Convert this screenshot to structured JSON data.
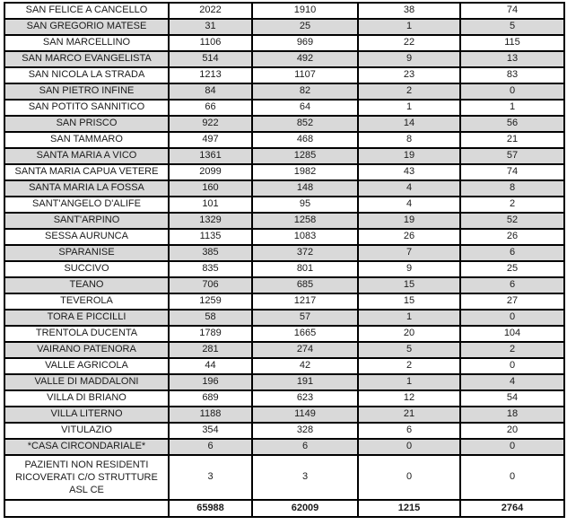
{
  "document": {
    "description_note": "Table of municipalities with four numeric value columns and a bold totals row",
    "colors": {
      "shaded_row_bg": "#d9d9d9",
      "border": "#000000",
      "text": "#1b1b1b",
      "page_bg": "#ffffff"
    }
  },
  "table": {
    "rows": [
      {
        "name": "SAN FELICE A CANCELLO",
        "values": [
          "2022",
          "1910",
          "38",
          "74"
        ],
        "shaded": false
      },
      {
        "name": "SAN GREGORIO MATESE",
        "values": [
          "31",
          "25",
          "1",
          "5"
        ],
        "shaded": true
      },
      {
        "name": "SAN MARCELLINO",
        "values": [
          "1106",
          "969",
          "22",
          "115"
        ],
        "shaded": false
      },
      {
        "name": "SAN MARCO EVANGELISTA",
        "values": [
          "514",
          "492",
          "9",
          "13"
        ],
        "shaded": true
      },
      {
        "name": "SAN NICOLA LA STRADA",
        "values": [
          "1213",
          "1107",
          "23",
          "83"
        ],
        "shaded": false
      },
      {
        "name": "SAN PIETRO INFINE",
        "values": [
          "84",
          "82",
          "2",
          "0"
        ],
        "shaded": true
      },
      {
        "name": "SAN POTITO SANNITICO",
        "values": [
          "66",
          "64",
          "1",
          "1"
        ],
        "shaded": false
      },
      {
        "name": "SAN PRISCO",
        "values": [
          "922",
          "852",
          "14",
          "56"
        ],
        "shaded": true
      },
      {
        "name": "SAN TAMMARO",
        "values": [
          "497",
          "468",
          "8",
          "21"
        ],
        "shaded": false
      },
      {
        "name": "SANTA MARIA A VICO",
        "values": [
          "1361",
          "1285",
          "19",
          "57"
        ],
        "shaded": true
      },
      {
        "name": "SANTA MARIA CAPUA VETERE",
        "values": [
          "2099",
          "1982",
          "43",
          "74"
        ],
        "shaded": false
      },
      {
        "name": "SANTA MARIA LA FOSSA",
        "values": [
          "160",
          "148",
          "4",
          "8"
        ],
        "shaded": true
      },
      {
        "name": "SANT'ANGELO D'ALIFE",
        "values": [
          "101",
          "95",
          "4",
          "2"
        ],
        "shaded": false
      },
      {
        "name": "SANT'ARPINO",
        "values": [
          "1329",
          "1258",
          "19",
          "52"
        ],
        "shaded": true
      },
      {
        "name": "SESSA AURUNCA",
        "values": [
          "1135",
          "1083",
          "26",
          "26"
        ],
        "shaded": false
      },
      {
        "name": "SPARANISE",
        "values": [
          "385",
          "372",
          "7",
          "6"
        ],
        "shaded": true
      },
      {
        "name": "SUCCIVO",
        "values": [
          "835",
          "801",
          "9",
          "25"
        ],
        "shaded": false
      },
      {
        "name": "TEANO",
        "values": [
          "706",
          "685",
          "15",
          "6"
        ],
        "shaded": true
      },
      {
        "name": "TEVEROLA",
        "values": [
          "1259",
          "1217",
          "15",
          "27"
        ],
        "shaded": false
      },
      {
        "name": "TORA E PICCILLI",
        "values": [
          "58",
          "57",
          "1",
          "0"
        ],
        "shaded": true
      },
      {
        "name": "TRENTOLA DUCENTA",
        "values": [
          "1789",
          "1665",
          "20",
          "104"
        ],
        "shaded": false
      },
      {
        "name": "VAIRANO PATENORA",
        "values": [
          "281",
          "274",
          "5",
          "2"
        ],
        "shaded": true
      },
      {
        "name": "VALLE AGRICOLA",
        "values": [
          "44",
          "42",
          "2",
          "0"
        ],
        "shaded": false
      },
      {
        "name": "VALLE DI MADDALONI",
        "values": [
          "196",
          "191",
          "1",
          "4"
        ],
        "shaded": true
      },
      {
        "name": "VILLA DI BRIANO",
        "values": [
          "689",
          "623",
          "12",
          "54"
        ],
        "shaded": false
      },
      {
        "name": "VILLA LITERNO",
        "values": [
          "1188",
          "1149",
          "21",
          "18"
        ],
        "shaded": true
      },
      {
        "name": "VITULAZIO",
        "values": [
          "354",
          "328",
          "6",
          "20"
        ],
        "shaded": false
      },
      {
        "name": "*CASA CIRCONDARIALE*",
        "values": [
          "6",
          "6",
          "0",
          "0"
        ],
        "shaded": true
      },
      {
        "name": "PAZIENTI NON RESIDENTI RICOVERATI C/O STRUTTURE ASL CE",
        "values": [
          "3",
          "3",
          "0",
          "0"
        ],
        "shaded": false,
        "tall": true
      }
    ],
    "total_row": {
      "name": "",
      "values": [
        "65988",
        "62009",
        "1215",
        "2764"
      ]
    }
  }
}
